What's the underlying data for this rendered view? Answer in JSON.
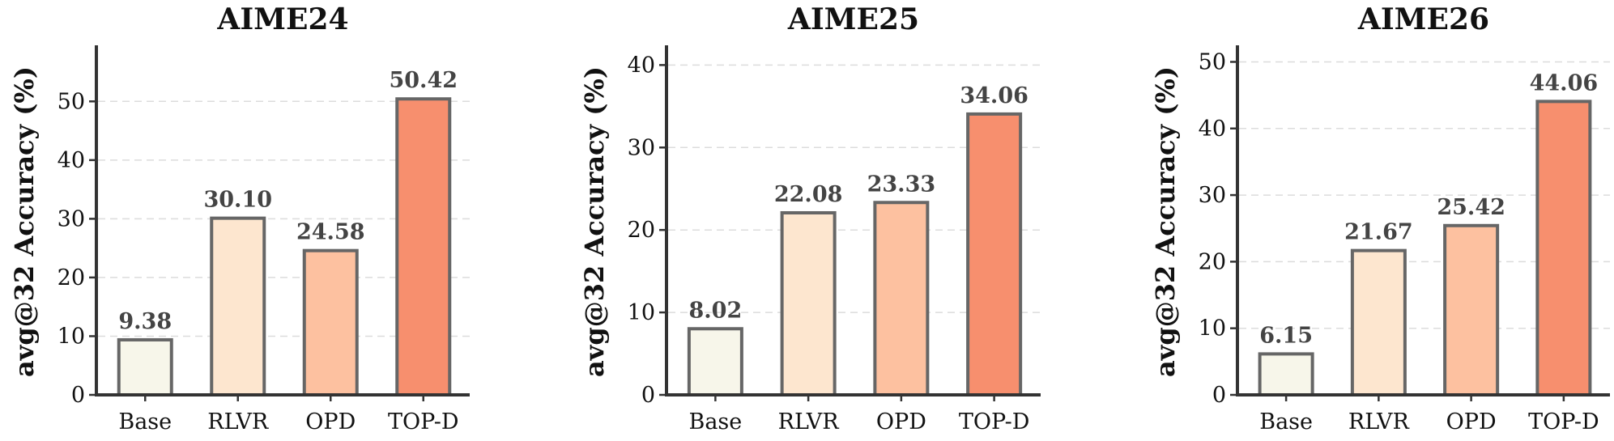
{
  "chart_data": [
    {
      "type": "bar",
      "title": "AIME24",
      "ylabel": "avg@32 Accuracy (%)",
      "xlabel": "",
      "categories": [
        "Base",
        "RLVR",
        "OPD",
        "TOP-D"
      ],
      "values": [
        9.38,
        30.1,
        24.58,
        50.42
      ],
      "value_labels": [
        "9.38",
        "30.10",
        "24.58",
        "50.42"
      ],
      "colors": [
        "#f7f6ea",
        "#fde6cf",
        "#fdc1a0",
        "#f78f6e"
      ],
      "ylim": [
        0,
        59
      ],
      "yticks": [
        0,
        10,
        20,
        30,
        40,
        50
      ],
      "grid": "horizontal-dashed",
      "legend": "none"
    },
    {
      "type": "bar",
      "title": "AIME25",
      "ylabel": "avg@32 Accuracy (%)",
      "xlabel": "",
      "categories": [
        "Base",
        "RLVR",
        "OPD",
        "TOP-D"
      ],
      "values": [
        8.02,
        22.08,
        23.33,
        34.06
      ],
      "value_labels": [
        "8.02",
        "22.08",
        "23.33",
        "34.06"
      ],
      "colors": [
        "#f7f6ea",
        "#fde6cf",
        "#fdc1a0",
        "#f78f6e"
      ],
      "ylim": [
        0,
        42
      ],
      "yticks": [
        0,
        10,
        20,
        30,
        40
      ],
      "grid": "horizontal-dashed",
      "legend": "none"
    },
    {
      "type": "bar",
      "title": "AIME26",
      "ylabel": "avg@32 Accuracy (%)",
      "xlabel": "",
      "categories": [
        "Base",
        "RLVR",
        "OPD",
        "TOP-D"
      ],
      "values": [
        6.15,
        21.67,
        25.42,
        44.06
      ],
      "value_labels": [
        "6.15",
        "21.67",
        "25.42",
        "44.06"
      ],
      "colors": [
        "#f7f6ea",
        "#fde6cf",
        "#fdc1a0",
        "#f78f6e"
      ],
      "ylim": [
        0,
        52
      ],
      "yticks": [
        0,
        10,
        20,
        30,
        40,
        50
      ],
      "grid": "horizontal-dashed",
      "legend": "none"
    }
  ]
}
